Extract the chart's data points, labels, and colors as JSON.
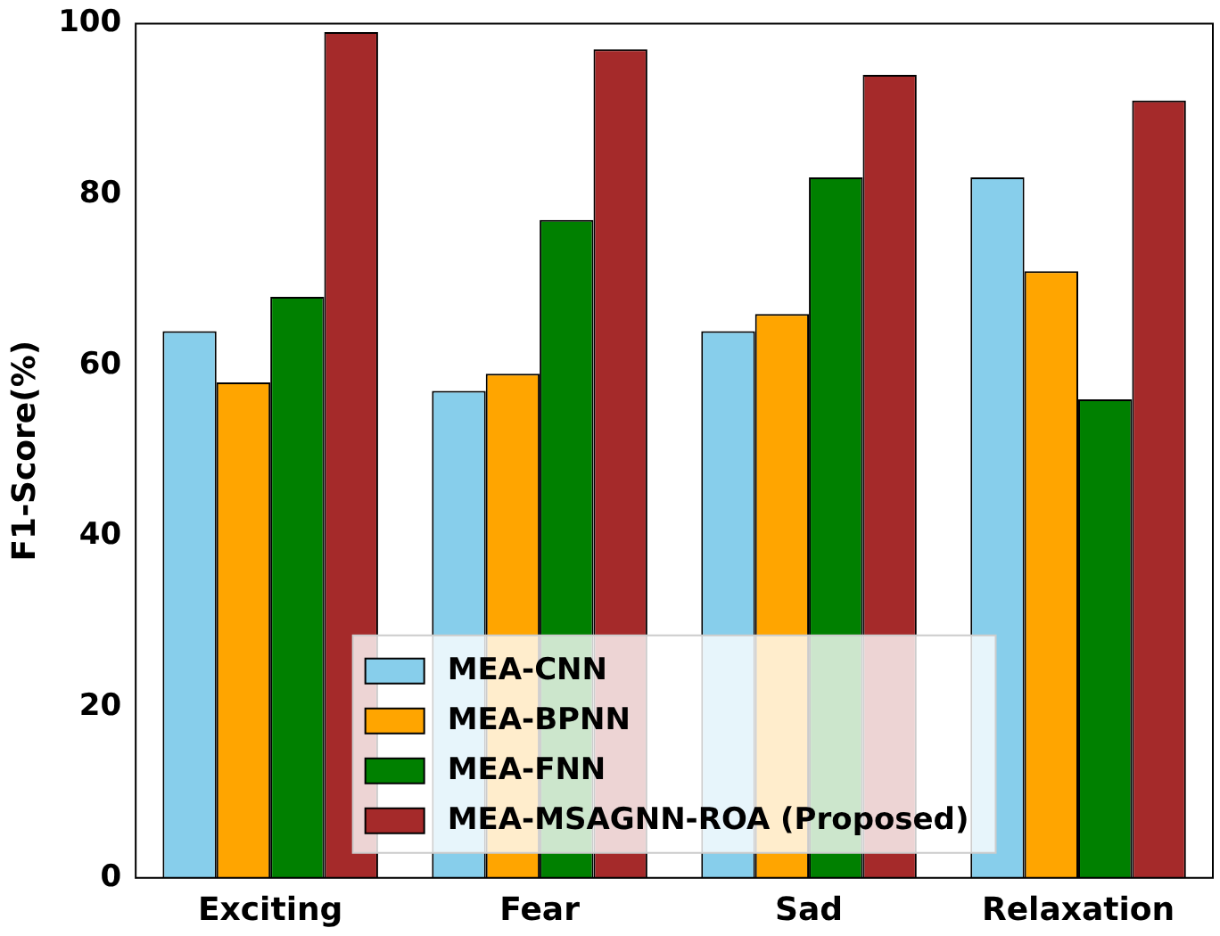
{
  "chart_data": {
    "type": "bar",
    "ylabel": "F1-Score(%)",
    "categories": [
      "Exciting",
      "Fear",
      "Sad",
      "Relaxation"
    ],
    "series": [
      {
        "name": "MEA-CNN",
        "color": "#87ceeb",
        "values": [
          64,
          57,
          64,
          82
        ]
      },
      {
        "name": "MEA-BPNN",
        "color": "#ffa500",
        "values": [
          58,
          59,
          66,
          71
        ]
      },
      {
        "name": "MEA-FNN",
        "color": "#008000",
        "values": [
          68,
          77,
          82,
          56
        ]
      },
      {
        "name": "MEA-MSAGNN-ROA (Proposed)",
        "color": "#a52a2a",
        "values": [
          99,
          97,
          94,
          91
        ]
      }
    ],
    "ylim": [
      0,
      100
    ],
    "yticks": [
      0,
      20,
      40,
      60,
      80,
      100
    ],
    "grid": false,
    "legend": "bottom"
  }
}
